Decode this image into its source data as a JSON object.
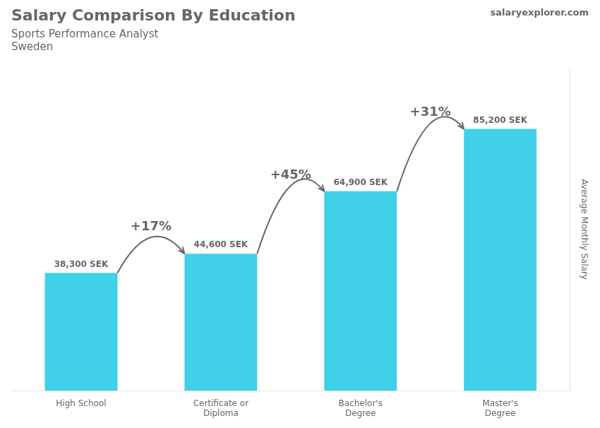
{
  "chart_data": {
    "type": "bar",
    "title": "Salary Comparison By Education",
    "subtitle": "Sports Performance Analyst",
    "country": "Sweden",
    "website": "salaryexplorer.com",
    "ylabel": "Average Monthly Salary",
    "categories": [
      "High School",
      "Certificate or\nDiploma",
      "Bachelor's\nDegree",
      "Master's\nDegree"
    ],
    "values": [
      38300,
      44600,
      64900,
      85200
    ],
    "value_labels": [
      "38,300 SEK",
      "44,600 SEK",
      "64,900 SEK",
      "85,200 SEK"
    ],
    "data_labels": true,
    "annotations": [
      "+17%",
      "+45%",
      "+31%"
    ],
    "color": "#40d0e8",
    "ylim": [
      0,
      105000
    ],
    "grid": false,
    "tick_labels": "x"
  }
}
